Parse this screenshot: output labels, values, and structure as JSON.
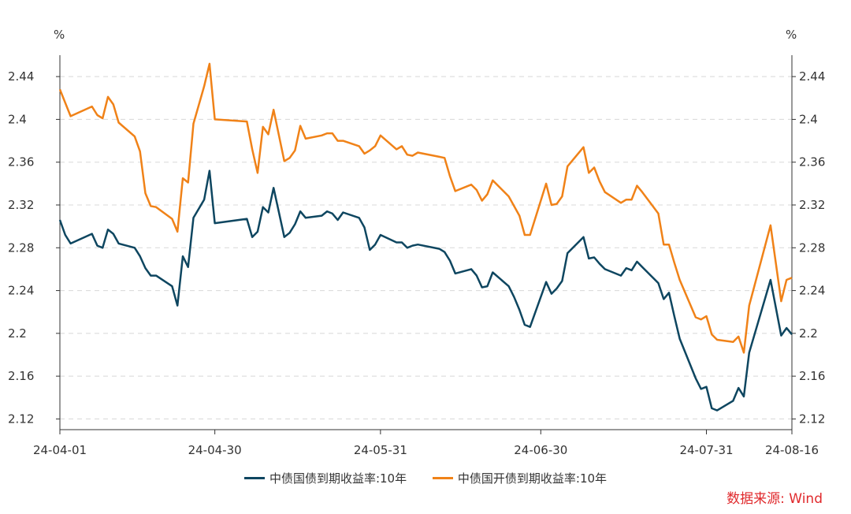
{
  "chart_data": {
    "type": "line",
    "y_unit_left": "%",
    "y_unit_right": "%",
    "ylim": [
      2.11,
      2.46
    ],
    "yticks": [
      2.12,
      2.16,
      2.2,
      2.24,
      2.28,
      2.32,
      2.36,
      2.4,
      2.44
    ],
    "ytick_labels": [
      "2.12",
      "2.16",
      "2.2",
      "2.24",
      "2.28",
      "2.32",
      "2.36",
      "2.4",
      "2.44"
    ],
    "x_range": [
      "2024-04-01",
      "2024-08-16"
    ],
    "xticks": [
      "2024-04-01",
      "2024-04-30",
      "2024-05-31",
      "2024-06-30",
      "2024-07-31",
      "2024-08-16"
    ],
    "xtick_labels": [
      "24-04-01",
      "24-04-30",
      "24-05-31",
      "24-06-30",
      "24-07-31",
      "24-08-16"
    ],
    "grid": true,
    "legend_position": "bottom",
    "source": "数据来源: Wind",
    "colors": {
      "series1": "#0e4660",
      "series2": "#f08218"
    },
    "series": [
      {
        "name": "中债国债到期收益率:10年",
        "color": "#0e4660",
        "points": [
          [
            "2024-04-01",
            2.306
          ],
          [
            "2024-04-02",
            2.292
          ],
          [
            "2024-04-03",
            2.284
          ],
          [
            "2024-04-07",
            2.293
          ],
          [
            "2024-04-08",
            2.282
          ],
          [
            "2024-04-09",
            2.28
          ],
          [
            "2024-04-10",
            2.297
          ],
          [
            "2024-04-11",
            2.293
          ],
          [
            "2024-04-12",
            2.284
          ],
          [
            "2024-04-15",
            2.28
          ],
          [
            "2024-04-16",
            2.272
          ],
          [
            "2024-04-17",
            2.261
          ],
          [
            "2024-04-18",
            2.254
          ],
          [
            "2024-04-19",
            2.254
          ],
          [
            "2024-04-22",
            2.244
          ],
          [
            "2024-04-23",
            2.226
          ],
          [
            "2024-04-24",
            2.272
          ],
          [
            "2024-04-25",
            2.262
          ],
          [
            "2024-04-26",
            2.308
          ],
          [
            "2024-04-28",
            2.325
          ],
          [
            "2024-04-29",
            2.352
          ],
          [
            "2024-04-30",
            2.303
          ],
          [
            "2024-05-06",
            2.307
          ],
          [
            "2024-05-07",
            2.29
          ],
          [
            "2024-05-08",
            2.295
          ],
          [
            "2024-05-09",
            2.318
          ],
          [
            "2024-05-10",
            2.313
          ],
          [
            "2024-05-11",
            2.336
          ],
          [
            "2024-05-13",
            2.29
          ],
          [
            "2024-05-14",
            2.294
          ],
          [
            "2024-05-15",
            2.302
          ],
          [
            "2024-05-16",
            2.314
          ],
          [
            "2024-05-17",
            2.308
          ],
          [
            "2024-05-20",
            2.31
          ],
          [
            "2024-05-21",
            2.314
          ],
          [
            "2024-05-22",
            2.312
          ],
          [
            "2024-05-23",
            2.306
          ],
          [
            "2024-05-24",
            2.313
          ],
          [
            "2024-05-27",
            2.308
          ],
          [
            "2024-05-28",
            2.299
          ],
          [
            "2024-05-29",
            2.278
          ],
          [
            "2024-05-30",
            2.283
          ],
          [
            "2024-05-31",
            2.292
          ],
          [
            "2024-06-03",
            2.285
          ],
          [
            "2024-06-04",
            2.285
          ],
          [
            "2024-06-05",
            2.28
          ],
          [
            "2024-06-06",
            2.282
          ],
          [
            "2024-06-07",
            2.283
          ],
          [
            "2024-06-11",
            2.279
          ],
          [
            "2024-06-12",
            2.276
          ],
          [
            "2024-06-13",
            2.268
          ],
          [
            "2024-06-14",
            2.256
          ],
          [
            "2024-06-17",
            2.26
          ],
          [
            "2024-06-18",
            2.254
          ],
          [
            "2024-06-19",
            2.243
          ],
          [
            "2024-06-20",
            2.244
          ],
          [
            "2024-06-21",
            2.257
          ],
          [
            "2024-06-24",
            2.244
          ],
          [
            "2024-06-25",
            2.234
          ],
          [
            "2024-06-26",
            2.222
          ],
          [
            "2024-06-27",
            2.208
          ],
          [
            "2024-06-28",
            2.206
          ],
          [
            "2024-07-01",
            2.248
          ],
          [
            "2024-07-02",
            2.237
          ],
          [
            "2024-07-03",
            2.242
          ],
          [
            "2024-07-04",
            2.249
          ],
          [
            "2024-07-05",
            2.275
          ],
          [
            "2024-07-08",
            2.29
          ],
          [
            "2024-07-09",
            2.27
          ],
          [
            "2024-07-10",
            2.271
          ],
          [
            "2024-07-11",
            2.265
          ],
          [
            "2024-07-12",
            2.26
          ],
          [
            "2024-07-15",
            2.254
          ],
          [
            "2024-07-16",
            2.261
          ],
          [
            "2024-07-17",
            2.259
          ],
          [
            "2024-07-18",
            2.267
          ],
          [
            "2024-07-19",
            2.262
          ],
          [
            "2024-07-22",
            2.247
          ],
          [
            "2024-07-23",
            2.232
          ],
          [
            "2024-07-24",
            2.238
          ],
          [
            "2024-07-25",
            2.216
          ],
          [
            "2024-07-26",
            2.195
          ],
          [
            "2024-07-29",
            2.158
          ],
          [
            "2024-07-30",
            2.148
          ],
          [
            "2024-07-31",
            2.15
          ],
          [
            "2024-08-01",
            2.13
          ],
          [
            "2024-08-02",
            2.128
          ],
          [
            "2024-08-05",
            2.137
          ],
          [
            "2024-08-06",
            2.149
          ],
          [
            "2024-08-07",
            2.141
          ],
          [
            "2024-08-08",
            2.182
          ],
          [
            "2024-08-12",
            2.25
          ],
          [
            "2024-08-14",
            2.198
          ],
          [
            "2024-08-15",
            2.205
          ],
          [
            "2024-08-16",
            2.199
          ]
        ]
      },
      {
        "name": "中债国开债到期收益率:10年",
        "color": "#f08218",
        "points": [
          [
            "2024-04-01",
            2.428
          ],
          [
            "2024-04-03",
            2.403
          ],
          [
            "2024-04-07",
            2.412
          ],
          [
            "2024-04-08",
            2.404
          ],
          [
            "2024-04-09",
            2.401
          ],
          [
            "2024-04-10",
            2.421
          ],
          [
            "2024-04-11",
            2.414
          ],
          [
            "2024-04-12",
            2.397
          ],
          [
            "2024-04-15",
            2.384
          ],
          [
            "2024-04-16",
            2.37
          ],
          [
            "2024-04-17",
            2.331
          ],
          [
            "2024-04-18",
            2.319
          ],
          [
            "2024-04-19",
            2.318
          ],
          [
            "2024-04-22",
            2.307
          ],
          [
            "2024-04-23",
            2.295
          ],
          [
            "2024-04-24",
            2.345
          ],
          [
            "2024-04-25",
            2.341
          ],
          [
            "2024-04-26",
            2.396
          ],
          [
            "2024-04-28",
            2.431
          ],
          [
            "2024-04-29",
            2.452
          ],
          [
            "2024-04-30",
            2.4
          ],
          [
            "2024-05-06",
            2.398
          ],
          [
            "2024-05-07",
            2.372
          ],
          [
            "2024-05-08",
            2.35
          ],
          [
            "2024-05-09",
            2.393
          ],
          [
            "2024-05-10",
            2.386
          ],
          [
            "2024-05-11",
            2.409
          ],
          [
            "2024-05-13",
            2.361
          ],
          [
            "2024-05-14",
            2.364
          ],
          [
            "2024-05-15",
            2.371
          ],
          [
            "2024-05-16",
            2.394
          ],
          [
            "2024-05-17",
            2.382
          ],
          [
            "2024-05-20",
            2.385
          ],
          [
            "2024-05-21",
            2.387
          ],
          [
            "2024-05-22",
            2.387
          ],
          [
            "2024-05-23",
            2.38
          ],
          [
            "2024-05-24",
            2.38
          ],
          [
            "2024-05-27",
            2.375
          ],
          [
            "2024-05-28",
            2.368
          ],
          [
            "2024-05-29",
            2.371
          ],
          [
            "2024-05-30",
            2.375
          ],
          [
            "2024-05-31",
            2.385
          ],
          [
            "2024-06-03",
            2.372
          ],
          [
            "2024-06-04",
            2.375
          ],
          [
            "2024-06-05",
            2.367
          ],
          [
            "2024-06-06",
            2.366
          ],
          [
            "2024-06-07",
            2.369
          ],
          [
            "2024-06-11",
            2.365
          ],
          [
            "2024-06-12",
            2.364
          ],
          [
            "2024-06-13",
            2.347
          ],
          [
            "2024-06-14",
            2.333
          ],
          [
            "2024-06-17",
            2.339
          ],
          [
            "2024-06-18",
            2.334
          ],
          [
            "2024-06-19",
            2.324
          ],
          [
            "2024-06-20",
            2.33
          ],
          [
            "2024-06-21",
            2.343
          ],
          [
            "2024-06-24",
            2.328
          ],
          [
            "2024-06-25",
            2.319
          ],
          [
            "2024-06-26",
            2.31
          ],
          [
            "2024-06-27",
            2.292
          ],
          [
            "2024-06-28",
            2.292
          ],
          [
            "2024-07-01",
            2.34
          ],
          [
            "2024-07-02",
            2.32
          ],
          [
            "2024-07-03",
            2.321
          ],
          [
            "2024-07-04",
            2.328
          ],
          [
            "2024-07-05",
            2.356
          ],
          [
            "2024-07-08",
            2.374
          ],
          [
            "2024-07-09",
            2.35
          ],
          [
            "2024-07-10",
            2.355
          ],
          [
            "2024-07-11",
            2.342
          ],
          [
            "2024-07-12",
            2.332
          ],
          [
            "2024-07-15",
            2.322
          ],
          [
            "2024-07-16",
            2.325
          ],
          [
            "2024-07-17",
            2.325
          ],
          [
            "2024-07-18",
            2.338
          ],
          [
            "2024-07-19",
            2.332
          ],
          [
            "2024-07-22",
            2.312
          ],
          [
            "2024-07-23",
            2.283
          ],
          [
            "2024-07-24",
            2.283
          ],
          [
            "2024-07-25",
            2.266
          ],
          [
            "2024-07-26",
            2.25
          ],
          [
            "2024-07-29",
            2.215
          ],
          [
            "2024-07-30",
            2.213
          ],
          [
            "2024-07-31",
            2.216
          ],
          [
            "2024-08-01",
            2.199
          ],
          [
            "2024-08-02",
            2.194
          ],
          [
            "2024-08-05",
            2.192
          ],
          [
            "2024-08-06",
            2.197
          ],
          [
            "2024-08-07",
            2.182
          ],
          [
            "2024-08-08",
            2.226
          ],
          [
            "2024-08-12",
            2.301
          ],
          [
            "2024-08-14",
            2.23
          ],
          [
            "2024-08-15",
            2.25
          ],
          [
            "2024-08-16",
            2.252
          ]
        ]
      }
    ]
  }
}
